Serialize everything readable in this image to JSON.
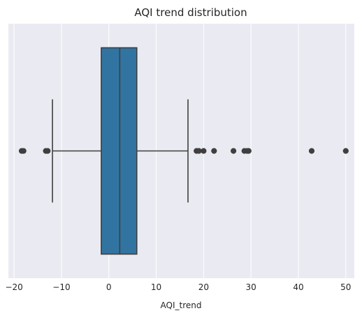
{
  "chart_data": {
    "type": "box",
    "title": "AQI trend distribution",
    "xlabel": "AQI_trend",
    "ylabel": "",
    "xlim": [
      -21.2,
      51.8
    ],
    "xticks": [
      -20,
      -10,
      0,
      10,
      20,
      30,
      40,
      50
    ],
    "xtick_labels": [
      "−20",
      "−10",
      "0",
      "10",
      "20",
      "30",
      "40",
      "50"
    ],
    "grid": true,
    "orientation": "horizontal",
    "box": {
      "whisker_low": -11.9,
      "q1": -1.6,
      "median": 2.3,
      "q3": 5.9,
      "whisker_high": 16.7
    },
    "outliers": [
      -18.4,
      -18.0,
      -13.3,
      -12.9,
      18.5,
      19.0,
      20.0,
      22.2,
      26.3,
      28.6,
      29.2,
      29.5,
      42.8,
      50.0
    ],
    "colors": {
      "background": "#eaeaf2",
      "grid": "#ffffff",
      "box_fill": "#3274a1",
      "lines": "#3f3f3f",
      "outlier": "#3f3f3f"
    }
  }
}
